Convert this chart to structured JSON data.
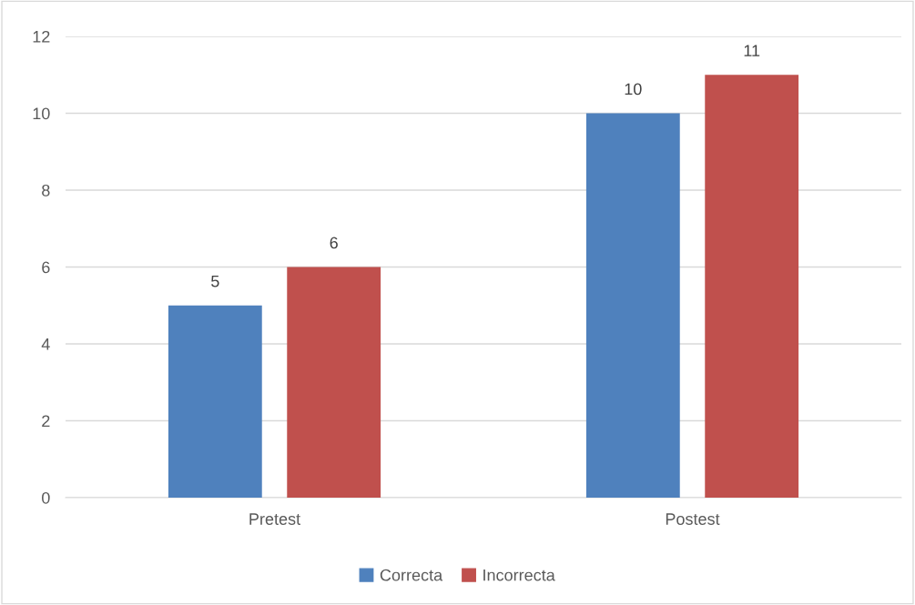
{
  "chart_data": {
    "type": "bar",
    "categories": [
      "Pretest",
      "Postest"
    ],
    "series": [
      {
        "name": "Correcta",
        "color": "#4f81bd",
        "values": [
          5,
          10
        ]
      },
      {
        "name": "Incorrecta",
        "color": "#c0504d",
        "values": [
          6,
          11
        ]
      }
    ],
    "ylim": [
      0,
      12
    ],
    "yticks": [
      0,
      2,
      4,
      6,
      8,
      10,
      12
    ],
    "grid": "y",
    "legend": "bottom",
    "data_labels": true
  }
}
